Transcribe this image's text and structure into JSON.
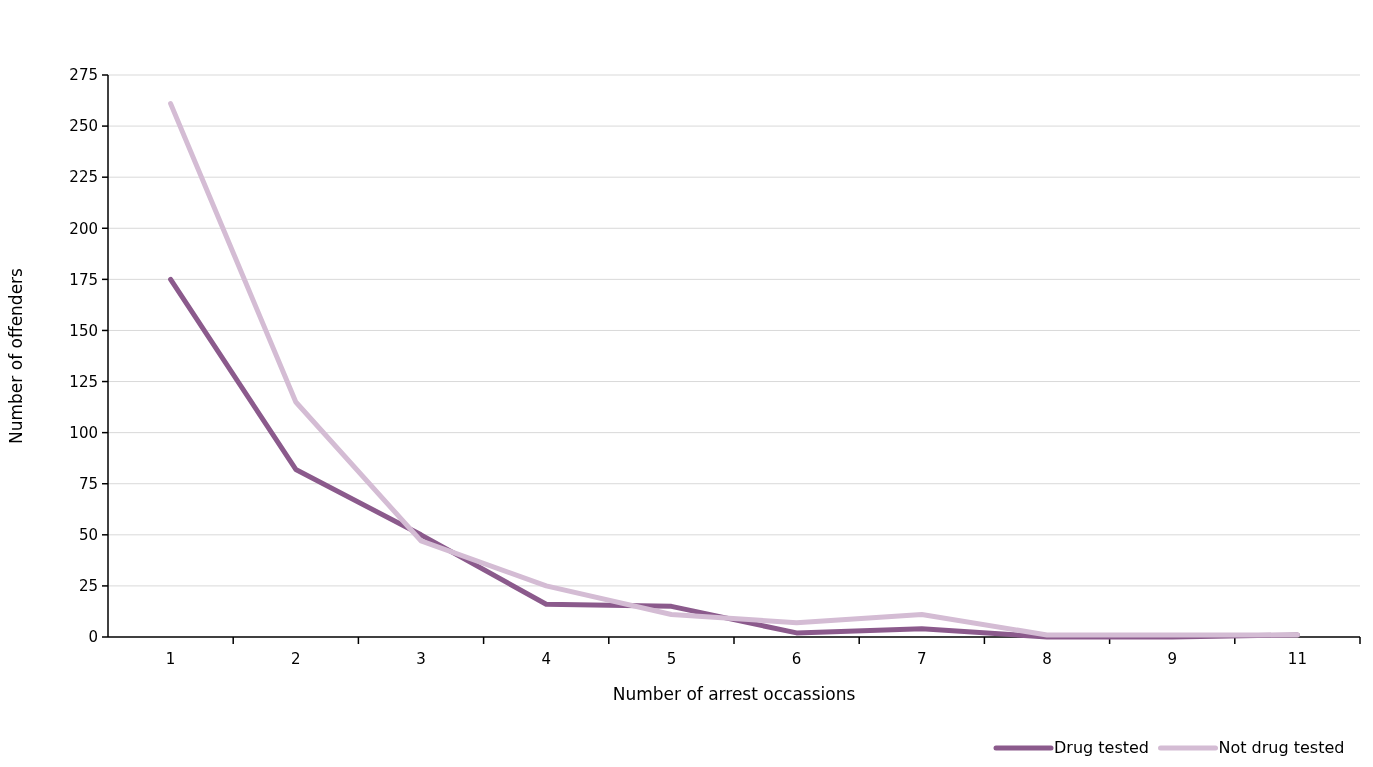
{
  "chart_data": {
    "type": "line",
    "xlabel": "Number of arrest occassions",
    "ylabel": "Number of offenders",
    "categories": [
      "1",
      "2",
      "3",
      "4",
      "5",
      "6",
      "7",
      "8",
      "9",
      "11"
    ],
    "ylim": [
      0,
      275
    ],
    "yticks": [
      0,
      25,
      50,
      75,
      100,
      125,
      150,
      175,
      200,
      225,
      250,
      275
    ],
    "grid": "y",
    "legend": "bottom right",
    "line_style": "solid",
    "marker": "none",
    "series": [
      {
        "name": "Drug tested",
        "color": "#8b5a8c",
        "values": [
          175,
          82,
          50,
          16,
          15,
          2,
          4,
          0,
          0,
          1
        ]
      },
      {
        "name": "Not drug tested",
        "color": "#d4bcd4",
        "values": [
          261,
          115,
          47,
          25,
          11,
          7,
          11,
          1,
          1,
          1
        ]
      }
    ]
  }
}
